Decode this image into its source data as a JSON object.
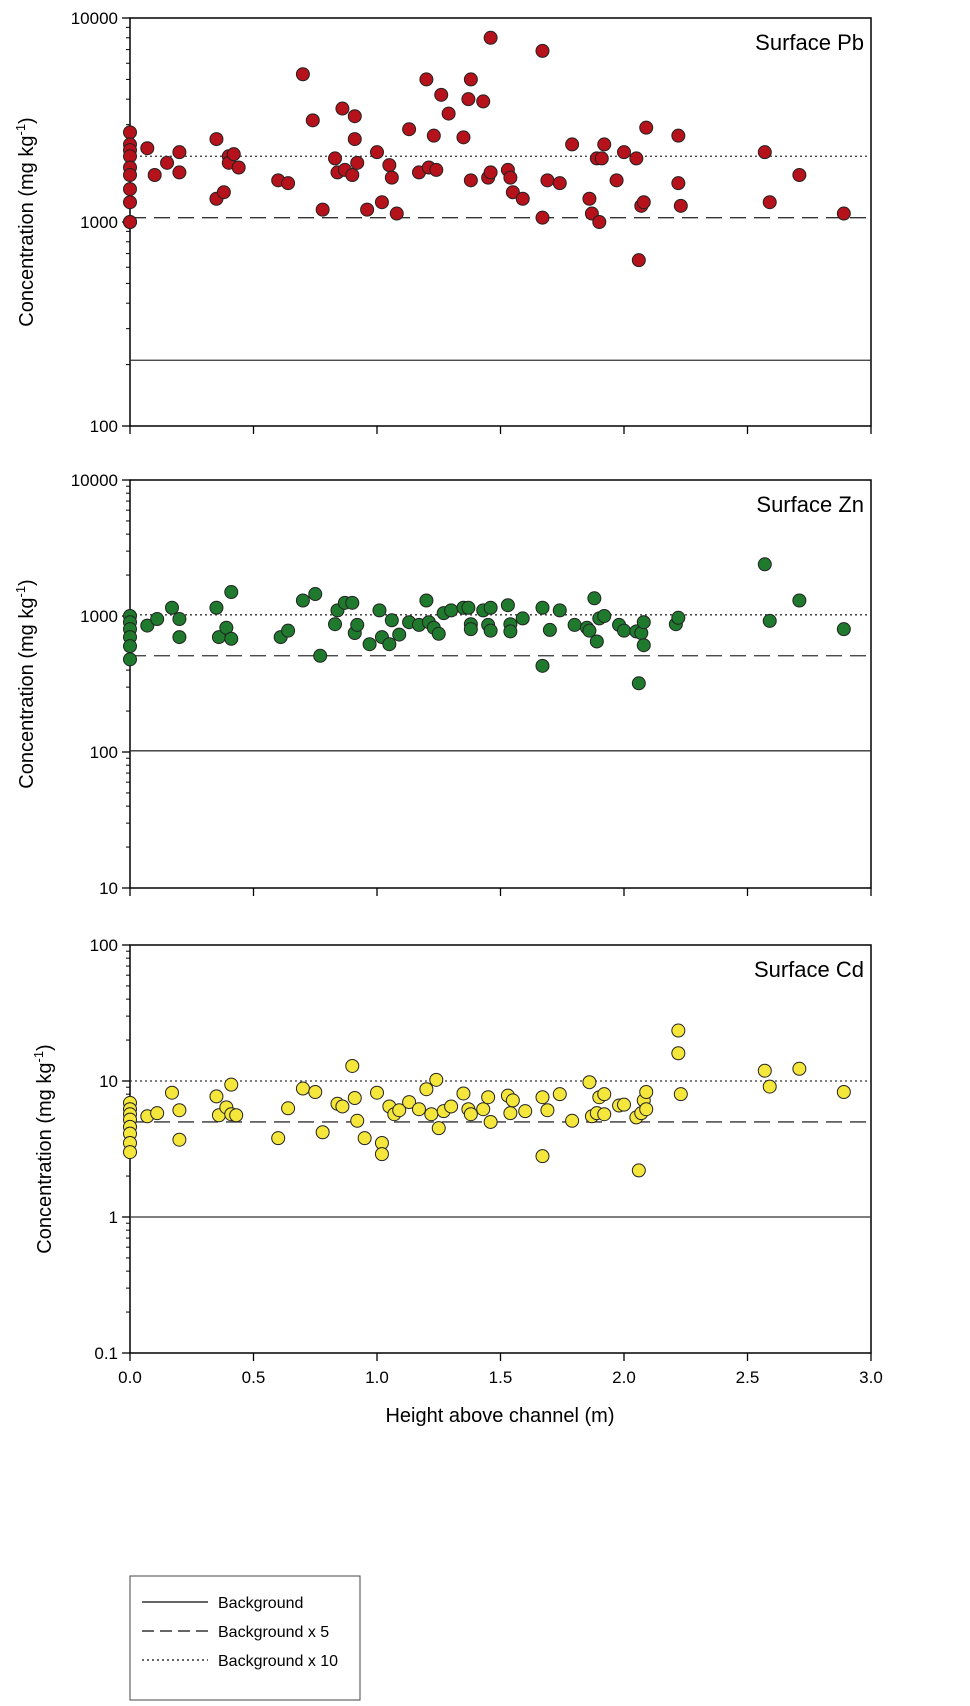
{
  "chart_data": [
    {
      "type": "scatter",
      "title": "Surface Pb",
      "ylabel": "Concentration (mg kg-1)",
      "ylabel_main": "Concentration (mg kg",
      "ylabel_sup": "-1",
      "ylabel_close": ")",
      "yscale": "log",
      "ylim": [
        100,
        10000
      ],
      "yticks": [
        "100",
        "1000",
        "10000"
      ],
      "xlim": [
        0,
        3
      ],
      "color": "#b5121b",
      "reference_lines": [
        {
          "name": "Background",
          "value": 210,
          "style": "solid"
        },
        {
          "name": "Background x 5",
          "value": 1050,
          "style": "dashed"
        },
        {
          "name": "Background x 10",
          "value": 2100,
          "style": "dotted"
        }
      ],
      "series": [
        {
          "x": [
            0.0,
            0.0,
            0.0,
            0.0,
            0.0,
            0.0,
            0.0,
            0.0,
            0.0,
            0.0,
            0.07,
            0.1,
            0.15,
            0.2,
            0.2,
            0.35,
            0.35,
            0.38,
            0.4,
            0.4,
            0.42,
            0.44,
            0.6,
            0.64,
            0.7,
            0.74,
            0.78,
            0.83,
            0.84,
            0.86,
            0.87,
            0.9,
            0.91,
            0.91,
            0.92,
            0.96,
            1.0,
            1.02,
            1.05,
            1.06,
            1.08,
            1.13,
            1.17,
            1.2,
            1.21,
            1.23,
            1.24,
            1.26,
            1.29,
            1.35,
            1.37,
            1.38,
            1.38,
            1.43,
            1.45,
            1.46,
            1.46,
            1.53,
            1.54,
            1.55,
            1.59,
            1.67,
            1.67,
            1.69,
            1.74,
            1.79,
            1.86,
            1.87,
            1.89,
            1.9,
            1.91,
            1.92,
            1.97,
            2.0,
            2.05,
            2.06,
            2.07,
            2.08,
            2.09,
            2.22,
            2.22,
            2.23,
            2.57,
            2.59,
            2.71,
            2.89
          ],
          "y": [
            2750,
            2400,
            2250,
            2100,
            1850,
            1700,
            1450,
            1250,
            1000,
            1000,
            2300,
            1700,
            1950,
            2200,
            1750,
            2550,
            1300,
            1400,
            2100,
            1950,
            2150,
            1850,
            1600,
            1550,
            5300,
            3150,
            1150,
            2050,
            1750,
            3600,
            1800,
            1700,
            3300,
            2550,
            1950,
            1150,
            2200,
            1250,
            1900,
            1650,
            1100,
            2850,
            1750,
            5000,
            1850,
            2650,
            1800,
            4200,
            3400,
            2600,
            4000,
            1600,
            5000,
            3900,
            1650,
            1750,
            8000,
            1800,
            1650,
            1400,
            1300,
            1050,
            6900,
            1600,
            1550,
            2400,
            1300,
            1100,
            2050,
            1000,
            2050,
            2400,
            1600,
            2200,
            2050,
            650,
            1200,
            1250,
            2900,
            2650,
            1550,
            1200,
            2200,
            1250,
            1700,
            1100
          ]
        }
      ]
    },
    {
      "type": "scatter",
      "title": "Surface Zn",
      "ylabel": "Concentration (mg kg-1)",
      "ylabel_main": "Concentration (mg kg",
      "ylabel_sup": "-1",
      "ylabel_close": ")",
      "yscale": "log",
      "ylim": [
        10,
        10000
      ],
      "yticks": [
        "10",
        "100",
        "1000",
        "10000"
      ],
      "xlim": [
        0,
        3
      ],
      "color": "#1f7a2e",
      "reference_lines": [
        {
          "name": "Background",
          "value": 102,
          "style": "solid"
        },
        {
          "name": "Background x 5",
          "value": 510,
          "style": "dashed"
        },
        {
          "name": "Background x 10",
          "value": 1020,
          "style": "dotted"
        }
      ],
      "series": [
        {
          "x": [
            0.0,
            0.0,
            0.0,
            0.0,
            0.0,
            0.0,
            0.07,
            0.11,
            0.17,
            0.2,
            0.2,
            0.35,
            0.36,
            0.39,
            0.41,
            0.41,
            0.61,
            0.64,
            0.7,
            0.75,
            0.77,
            0.83,
            0.84,
            0.87,
            0.9,
            0.91,
            0.92,
            0.97,
            1.01,
            1.02,
            1.05,
            1.06,
            1.09,
            1.13,
            1.17,
            1.2,
            1.21,
            1.23,
            1.25,
            1.27,
            1.3,
            1.35,
            1.37,
            1.38,
            1.38,
            1.43,
            1.45,
            1.46,
            1.46,
            1.53,
            1.54,
            1.54,
            1.59,
            1.67,
            1.67,
            1.7,
            1.74,
            1.8,
            1.85,
            1.86,
            1.88,
            1.89,
            1.9,
            1.92,
            1.98,
            2.0,
            2.05,
            2.06,
            2.07,
            2.08,
            2.08,
            2.21,
            2.22,
            2.57,
            2.59,
            2.71,
            2.89
          ],
          "y": [
            1000,
            900,
            800,
            700,
            600,
            480,
            850,
            950,
            1150,
            950,
            700,
            1150,
            700,
            820,
            680,
            1500,
            700,
            780,
            1300,
            1450,
            510,
            870,
            1100,
            1250,
            1250,
            750,
            860,
            620,
            1100,
            700,
            620,
            930,
            730,
            900,
            860,
            1300,
            900,
            820,
            740,
            1050,
            1100,
            1150,
            1150,
            870,
            800,
            1100,
            860,
            780,
            1150,
            1200,
            870,
            770,
            960,
            430,
            1150,
            790,
            1100,
            860,
            820,
            780,
            1350,
            650,
            960,
            1000,
            860,
            780,
            770,
            320,
            750,
            610,
            900,
            870,
            970,
            2400,
            920,
            1300,
            800
          ]
        }
      ]
    },
    {
      "type": "scatter",
      "title": "Surface Cd",
      "ylabel": "Concentration (mg kg-1)",
      "ylabel_main": "Concentration (mg kg",
      "ylabel_sup": "-1",
      "ylabel_close": ")",
      "xlabel": "Height above channel (m)",
      "yscale": "log",
      "ylim": [
        0.1,
        100
      ],
      "yticks": [
        "0.1",
        "1",
        "10",
        "100"
      ],
      "xlim": [
        0,
        3
      ],
      "xticks": [
        "0.0",
        "0.5",
        "1.0",
        "1.5",
        "2.0",
        "2.5",
        "3.0"
      ],
      "color": "#f5e63b",
      "reference_lines": [
        {
          "name": "Background",
          "value": 1.0,
          "style": "solid"
        },
        {
          "name": "Background x 5",
          "value": 5.0,
          "style": "dashed"
        },
        {
          "name": "Background x 10",
          "value": 10.0,
          "style": "dotted"
        }
      ],
      "series": [
        {
          "x": [
            0.0,
            0.0,
            0.0,
            0.0,
            0.0,
            0.0,
            0.0,
            0.0,
            0.07,
            0.11,
            0.17,
            0.2,
            0.2,
            0.35,
            0.36,
            0.39,
            0.41,
            0.41,
            0.43,
            0.6,
            0.64,
            0.7,
            0.75,
            0.78,
            0.84,
            0.86,
            0.9,
            0.91,
            0.92,
            0.95,
            1.0,
            1.02,
            1.02,
            1.05,
            1.07,
            1.09,
            1.13,
            1.17,
            1.2,
            1.22,
            1.24,
            1.25,
            1.27,
            1.3,
            1.35,
            1.37,
            1.38,
            1.43,
            1.45,
            1.46,
            1.53,
            1.54,
            1.55,
            1.6,
            1.67,
            1.67,
            1.69,
            1.74,
            1.79,
            1.86,
            1.87,
            1.89,
            1.9,
            1.92,
            1.92,
            1.98,
            2.0,
            2.05,
            2.06,
            2.07,
            2.08,
            2.09,
            2.09,
            2.22,
            2.22,
            2.23,
            2.57,
            2.59,
            2.71,
            2.89
          ],
          "y": [
            6.9,
            6.2,
            5.7,
            5.2,
            4.6,
            4.1,
            3.5,
            3.0,
            5.5,
            5.8,
            8.2,
            6.1,
            3.7,
            7.7,
            5.6,
            6.4,
            9.4,
            5.7,
            5.6,
            3.8,
            6.3,
            8.8,
            8.3,
            4.2,
            6.8,
            6.5,
            12.9,
            7.5,
            5.1,
            3.8,
            8.2,
            3.5,
            2.9,
            6.5,
            5.7,
            6.1,
            7.0,
            6.2,
            8.7,
            5.7,
            10.2,
            4.5,
            6.0,
            6.5,
            8.1,
            6.2,
            5.7,
            6.2,
            7.6,
            5.0,
            7.8,
            5.8,
            7.2,
            6.0,
            2.8,
            7.6,
            6.1,
            8.0,
            5.1,
            9.8,
            5.5,
            5.8,
            7.6,
            8.0,
            5.7,
            6.6,
            6.7,
            5.4,
            2.2,
            5.8,
            7.2,
            6.2,
            8.3,
            23.5,
            16.0,
            8.0,
            11.9,
            9.1,
            12.3,
            8.3
          ]
        }
      ]
    }
  ],
  "legend": {
    "entries": [
      {
        "label": "Background",
        "style": "solid"
      },
      {
        "label": "Background x 5",
        "style": "dashed"
      },
      {
        "label": "Background x 10",
        "style": "dotted"
      }
    ]
  }
}
